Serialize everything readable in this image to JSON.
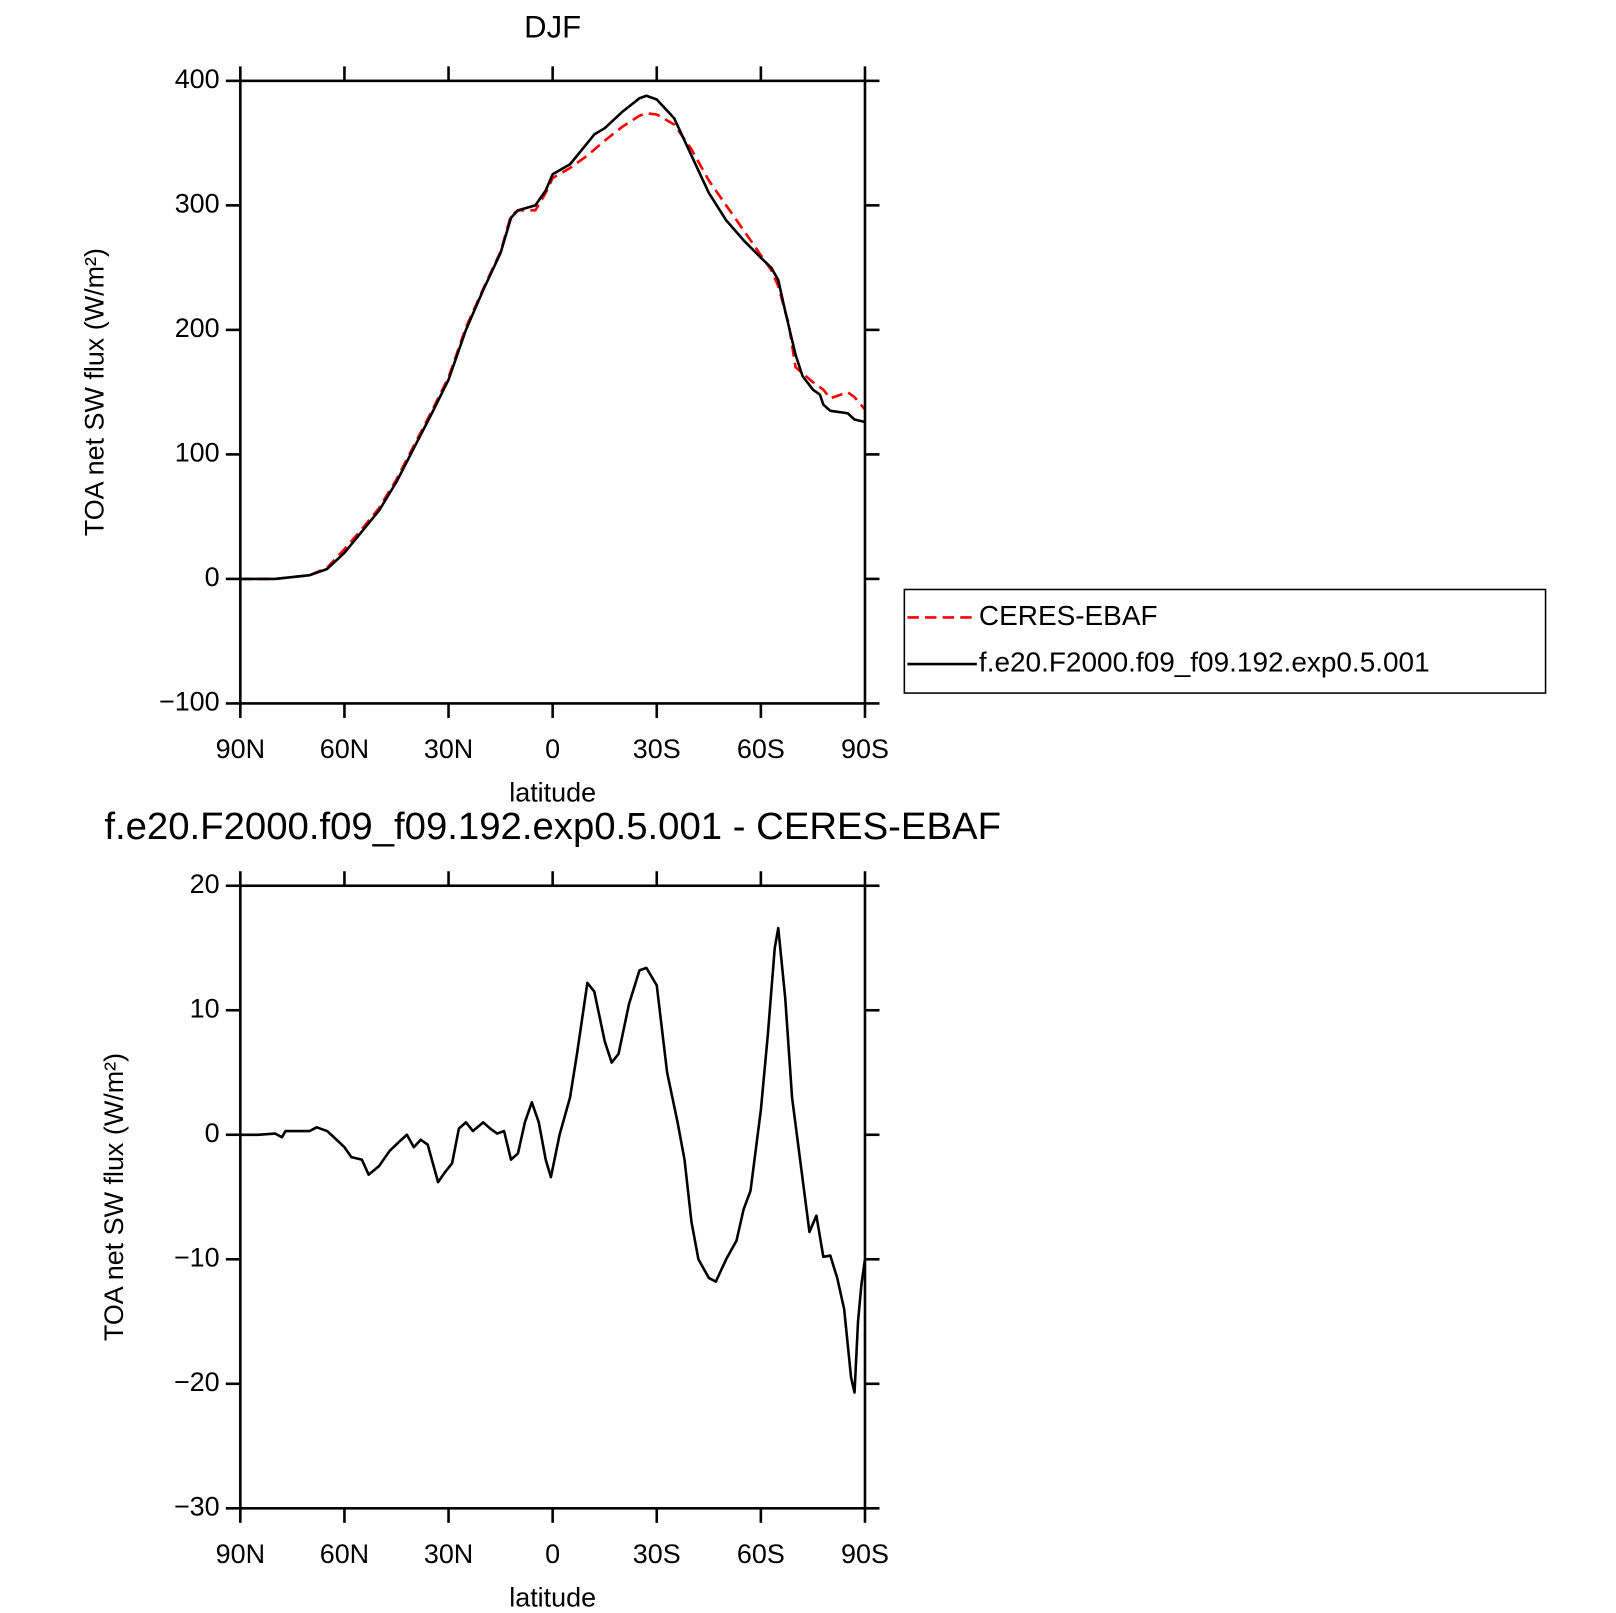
{
  "chart_data": [
    {
      "type": "line",
      "title": "DJF",
      "xlabel": "latitude",
      "ylabel": "TOA net SW flux (W/m²)",
      "xlim": [
        90,
        -90
      ],
      "xticks": [
        {
          "value": 90,
          "label": "90N"
        },
        {
          "value": 60,
          "label": "60N"
        },
        {
          "value": 30,
          "label": "30N"
        },
        0,
        {
          "value": -30,
          "label": "30S"
        },
        {
          "value": -60,
          "label": "60S"
        },
        {
          "value": -90,
          "label": "90S"
        }
      ],
      "ylim": [
        -100,
        400
      ],
      "yticks": [
        {
          "value": -100,
          "label": "−100"
        },
        0,
        100,
        200,
        300,
        400
      ],
      "legend": "right",
      "series": [
        {
          "name": "CERES-EBAF",
          "color": "#ff0000",
          "linestyle": "dashed",
          "x": [
            90,
            80,
            70,
            65,
            60,
            55,
            50,
            45,
            40,
            35,
            30,
            25,
            20,
            15,
            12,
            10,
            5,
            2,
            0,
            -5,
            -10,
            -15,
            -20,
            -25,
            -27,
            -30,
            -35,
            -40,
            -45,
            -50,
            -55,
            -60,
            -63,
            -65,
            -68,
            -70,
            -75,
            -78,
            -80,
            -83,
            -85,
            -87,
            -90
          ],
          "values": [
            0,
            0,
            3,
            9,
            24,
            40,
            57,
            80,
            107,
            134,
            162,
            202,
            233,
            263,
            292,
            296,
            296,
            310,
            322,
            330,
            340,
            352,
            363,
            372,
            374,
            373,
            365,
            345,
            320,
            300,
            280,
            260,
            248,
            235,
            205,
            170,
            158,
            152,
            145,
            148,
            150,
            146,
            136
          ]
        },
        {
          "name": "f.e20.F2000.f09_f09.192.exp0.5.001",
          "color": "#000000",
          "linestyle": "solid",
          "x": [
            90,
            80,
            70,
            65,
            60,
            55,
            50,
            45,
            40,
            35,
            30,
            25,
            20,
            15,
            12,
            10,
            5,
            2,
            0,
            -5,
            -10,
            -12,
            -15,
            -20,
            -25,
            -27,
            -30,
            -35,
            -40,
            -45,
            -50,
            -55,
            -60,
            -63,
            -65,
            -67,
            -70,
            -72,
            -75,
            -77,
            -78,
            -80,
            -85,
            -87,
            -90
          ],
          "values": [
            0,
            0,
            3,
            8,
            21,
            38,
            55,
            78,
            105,
            132,
            160,
            200,
            232,
            262,
            290,
            296,
            300,
            312,
            325,
            333,
            350,
            357,
            362,
            375,
            386,
            388,
            385,
            370,
            340,
            310,
            288,
            272,
            258,
            250,
            240,
            215,
            180,
            163,
            152,
            148,
            140,
            135,
            133,
            128,
            126
          ]
        }
      ]
    },
    {
      "type": "line",
      "title": "f.e20.F2000.f09_f09.192.exp0.5.001 - CERES-EBAF",
      "xlabel": "latitude",
      "ylabel": "TOA net SW flux (W/m²)",
      "xlim": [
        90,
        -90
      ],
      "xticks": [
        {
          "value": 90,
          "label": "90N"
        },
        {
          "value": 60,
          "label": "60N"
        },
        {
          "value": 30,
          "label": "30N"
        },
        0,
        {
          "value": -30,
          "label": "30S"
        },
        {
          "value": -60,
          "label": "60S"
        },
        {
          "value": -90,
          "label": "90S"
        }
      ],
      "ylim": [
        -30,
        20
      ],
      "yticks": [
        {
          "value": -30,
          "label": "−30"
        },
        {
          "value": -20,
          "label": "−20"
        },
        {
          "value": -10,
          "label": "−10"
        },
        0,
        10,
        20
      ],
      "color": "#000000",
      "x": [
        90,
        85,
        80,
        78,
        77,
        70,
        68,
        65,
        63,
        60,
        58,
        55,
        53,
        50,
        47,
        44,
        42,
        40,
        38,
        36,
        33,
        31,
        29,
        27,
        25,
        23,
        20,
        18,
        16,
        14,
        12,
        10,
        8,
        6,
        4,
        2,
        0.5,
        -2,
        -5,
        -7,
        -10,
        -12,
        -15,
        -17,
        -19,
        -22,
        -25,
        -27,
        -30,
        -33,
        -36,
        -38,
        -40,
        -42,
        -45,
        -47,
        -50,
        -53,
        -55,
        -57,
        -60,
        -62,
        -64,
        -65,
        -67,
        -69,
        -72,
        -74,
        -76,
        -78,
        -80,
        -82,
        -84,
        -86,
        -87,
        -88,
        -89,
        -90
      ],
      "values": [
        0,
        0,
        0.1,
        -0.2,
        0.3,
        0.3,
        0.6,
        0.3,
        -0.2,
        -1,
        -1.8,
        -2,
        -3.2,
        -2.5,
        -1.3,
        -0.5,
        0,
        -1,
        -0.4,
        -0.8,
        -3.8,
        -3,
        -2.3,
        0.5,
        1,
        0.3,
        1,
        0.5,
        0.1,
        0.3,
        -2,
        -1.5,
        1,
        2.6,
        1,
        -2,
        -3.4,
        0,
        3,
        6.5,
        12.2,
        11.5,
        7.5,
        5.8,
        6.5,
        10.5,
        13.2,
        13.4,
        12,
        5,
        1,
        -2,
        -7,
        -10,
        -11.5,
        -11.8,
        -10,
        -8.5,
        -6,
        -4.5,
        2,
        8,
        15,
        16.6,
        11,
        3,
        -3.5,
        -7.8,
        -6.5,
        -9.8,
        -9.7,
        -11.5,
        -14,
        -19.5,
        -20.7,
        -15,
        -12,
        -10
      ]
    }
  ]
}
